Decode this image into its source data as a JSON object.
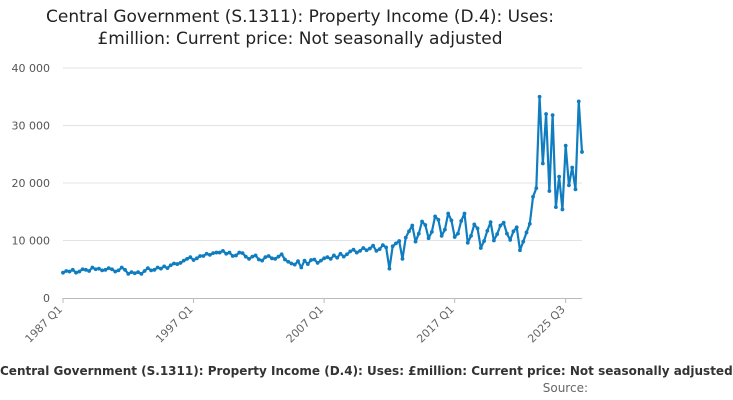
{
  "chart_data": {
    "type": "line",
    "title": "Central Government (S.1311): Property Income (D.4): Uses: £million: Current price: Not seasonally adjusted",
    "title_line1": "Central Government (S.1311): Property Income (D.4): Uses:",
    "title_line2": "£million: Current price: Not seasonally adjusted",
    "xlabel": "",
    "ylabel": "",
    "ylim": [
      0,
      40000
    ],
    "y_ticks": [
      0,
      10000,
      20000,
      30000,
      40000
    ],
    "y_tick_labels": [
      "0",
      "10 000",
      "20 000",
      "30 000",
      "40 000"
    ],
    "x_tick_labels": [
      "1987 Q1",
      "1997 Q1",
      "2007 Q1",
      "2017 Q1",
      "2025 Q3"
    ],
    "x_tick_index": [
      0,
      40,
      80,
      120,
      154
    ],
    "grid": true,
    "legend": "bottom",
    "legend_label": "Central Government (S.1311): Property Income (D.4): Uses: £million: Current price: Not seasonally adjusted",
    "source_label": "Source:",
    "color": "#0f7dbf",
    "series": [
      {
        "name": "Central Government (S.1311): Property Income (D.4): Uses: £million: Current price: Not seasonally adjusted",
        "x_start": "1987 Q1",
        "frequency": "quarterly",
        "values": [
          4400,
          4700,
          4600,
          4900,
          4400,
          4600,
          5000,
          4900,
          4700,
          5300,
          5000,
          5100,
          4800,
          4900,
          5200,
          5000,
          4600,
          4800,
          5300,
          4900,
          4200,
          4500,
          4300,
          4500,
          4200,
          4700,
          5200,
          4800,
          4900,
          5300,
          5100,
          5500,
          5200,
          5700,
          6000,
          5900,
          6100,
          6500,
          6800,
          7100,
          6600,
          6900,
          7300,
          7300,
          7700,
          7500,
          7800,
          7900,
          7900,
          8200,
          7700,
          7900,
          7300,
          7400,
          7900,
          7800,
          7200,
          6800,
          7200,
          7400,
          6700,
          6500,
          7100,
          7300,
          6900,
          6800,
          7200,
          7600,
          6700,
          6300,
          6000,
          5800,
          6400,
          5300,
          6500,
          5900,
          6600,
          6700,
          6100,
          6500,
          6900,
          7100,
          6800,
          7400,
          7000,
          7700,
          7200,
          7600,
          8100,
          8400,
          7900,
          8200,
          8700,
          8300,
          8600,
          9100,
          8200,
          8500,
          9200,
          8800,
          5100,
          9000,
          9500,
          9900,
          6800,
          10500,
          11600,
          12600,
          9800,
          11200,
          13300,
          12700,
          10400,
          11500,
          14200,
          13600,
          10800,
          11900,
          14700,
          13500,
          10600,
          11200,
          13400,
          14700,
          9600,
          10800,
          12800,
          12100,
          8700,
          9900,
          11700,
          13200,
          10000,
          11100,
          12600,
          13100,
          11200,
          10100,
          11600,
          12300,
          8300,
          9800,
          11400,
          12900,
          17600,
          19100,
          35000,
          23400,
          32000,
          18600,
          31800,
          15800,
          21100,
          15400,
          26500,
          19600,
          22700,
          18900,
          34200,
          25400
        ]
      }
    ]
  }
}
